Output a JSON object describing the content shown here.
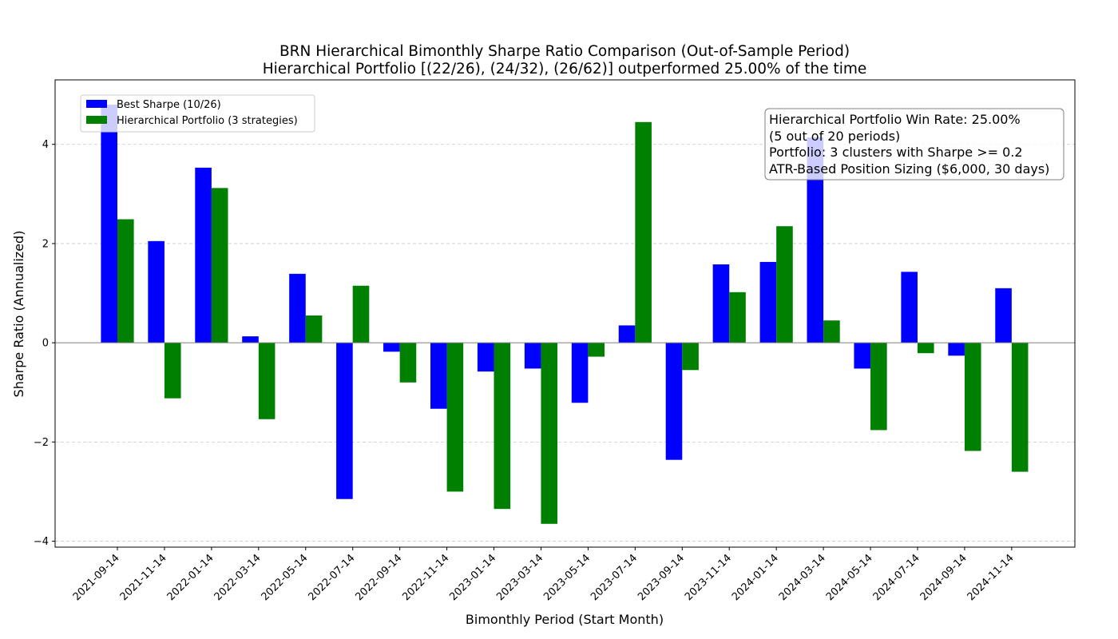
{
  "chart_data": {
    "type": "bar",
    "title": "BRN Hierarchical Bimonthly Sharpe Ratio Comparison (Out-of-Sample Period)",
    "subtitle": "Hierarchical Portfolio [(22/26), (24/32), (26/62)] outperformed 25.00% of the time",
    "xlabel": "Bimonthly Period (Start Month)",
    "ylabel": "Sharpe Ratio (Annualized)",
    "ylim": [
      -4.12,
      5.3
    ],
    "yticks": [
      -4,
      -2,
      0,
      2,
      4
    ],
    "ytick_labels": [
      "−4",
      "−2",
      "0",
      "2",
      "4"
    ],
    "grid": "y-dashed",
    "legend_position": "top-left",
    "categories": [
      "2021-09-14",
      "2021-11-14",
      "2022-01-14",
      "2022-03-14",
      "2022-05-14",
      "2022-07-14",
      "2022-09-14",
      "2022-11-14",
      "2023-01-14",
      "2023-03-14",
      "2023-05-14",
      "2023-07-14",
      "2023-09-14",
      "2023-11-14",
      "2024-01-14",
      "2024-03-14",
      "2024-05-14",
      "2024-07-14",
      "2024-09-14",
      "2024-11-14"
    ],
    "series": [
      {
        "name": "Best Sharpe (10/26)",
        "color": "#0000ff",
        "values": [
          4.8,
          2.05,
          3.53,
          0.13,
          1.39,
          -3.15,
          -0.18,
          -1.33,
          -0.58,
          -0.52,
          -1.21,
          0.35,
          -2.36,
          1.58,
          1.63,
          4.14,
          -0.52,
          1.43,
          -0.26,
          1.1
        ]
      },
      {
        "name": "Hierarchical Portfolio (3 strategies)",
        "color": "#008000",
        "values": [
          2.49,
          -1.12,
          3.12,
          -1.54,
          0.55,
          1.15,
          -0.8,
          -3.0,
          -3.35,
          -3.65,
          -0.28,
          4.45,
          -0.55,
          1.02,
          2.35,
          0.45,
          -1.76,
          -0.21,
          -2.18,
          -2.6
        ]
      }
    ],
    "annotation": {
      "lines": [
        "Hierarchical Portfolio Win Rate: 25.00%",
        "(5 out of 20 periods)",
        "Portfolio: 3 clusters with Sharpe >= 0.2",
        "ATR-Based Position Sizing ($6,000, 30 days)"
      ],
      "position": "top-right"
    }
  }
}
